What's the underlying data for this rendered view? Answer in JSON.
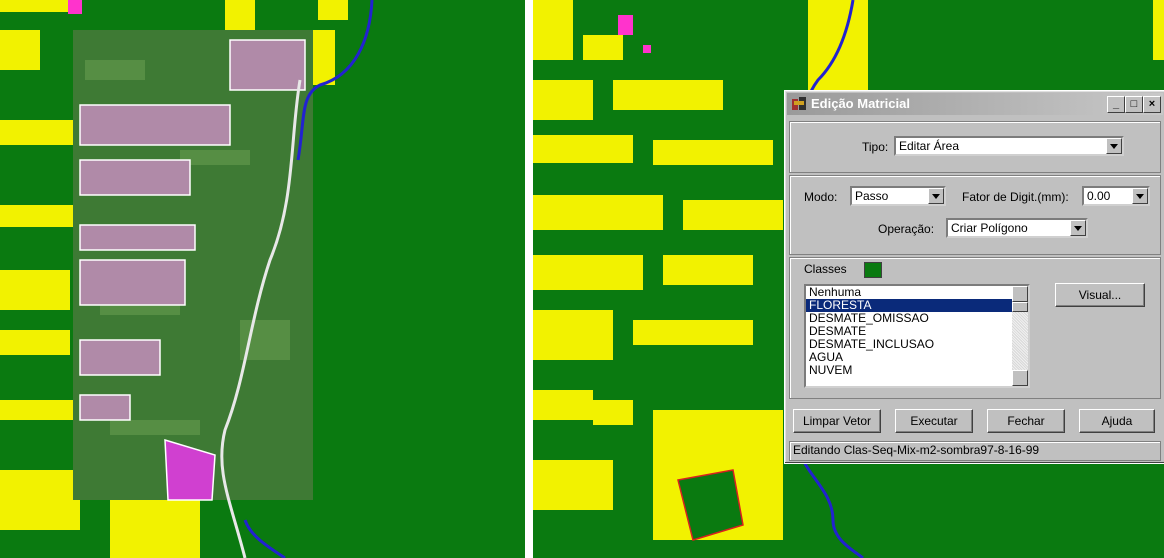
{
  "colors": {
    "forest": "#0a7a10",
    "deforest": "#f2f200",
    "river": "#2222d0",
    "cloud": "#ff33cc",
    "selection": "#0a2a7a"
  },
  "dialog": {
    "title": "Edição Matricial",
    "tipo_label": "Tipo:",
    "tipo_value": "Editar Área",
    "modo_label": "Modo:",
    "modo_value": "Passo",
    "fator_label": "Fator de Digit.(mm):",
    "fator_value": "0.00",
    "operacao_label": "Operação:",
    "operacao_value": "Criar Polígono",
    "classes_label": "Classes",
    "classes": [
      "Nenhuma",
      "FLORESTA",
      "DESMATE_OMISSAO",
      "DESMATE",
      "DESMATE_INCLUSAO",
      "AGUA",
      "NUVEM"
    ],
    "selected_class": "FLORESTA",
    "visual_button": "Visual...",
    "buttons": {
      "limpar": "Limpar Vetor",
      "executar": "Executar",
      "fechar": "Fechar",
      "ajuda": "Ajuda"
    },
    "status": "Editando Clas-Seq-Mix-m2-sombra97-8-16-99"
  }
}
